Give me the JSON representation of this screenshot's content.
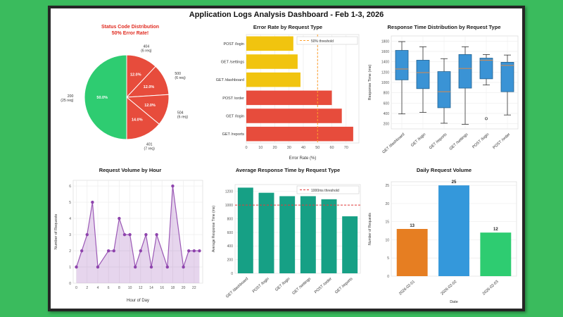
{
  "page": {
    "title": "Application Logs Analysis Dashboard - Feb 1-3, 2026",
    "background_color": "#3abb5d",
    "frame_color": "#262626"
  },
  "chart_data": [
    {
      "type": "pie",
      "title_line1": "Status Code Distribution",
      "title_line2": "50% Error Rate!",
      "title_color": "#e02b20",
      "slices": [
        {
          "label": "404",
          "sub": "(6 req)",
          "pct": 12.0,
          "pct_label": "12.0%",
          "color": "#e74c3c"
        },
        {
          "label": "500",
          "sub": "(6 req)",
          "pct": 12.0,
          "pct_label": "12.0%",
          "color": "#e74c3c"
        },
        {
          "label": "504",
          "sub": "(6 req)",
          "pct": 12.0,
          "pct_label": "12.0%",
          "color": "#e74c3c"
        },
        {
          "label": "401",
          "sub": "(7 req)",
          "pct": 14.0,
          "pct_label": "14.0%",
          "color": "#e74c3c"
        },
        {
          "label": "200",
          "sub": "(25 req)",
          "pct": 50.0,
          "pct_label": "50.0%",
          "color": "#2ecc71"
        }
      ]
    },
    {
      "type": "hbar",
      "title": "Error Rate by Request Type",
      "categories": [
        "POST /login",
        "GET /settings",
        "GET /dashboard",
        "POST /order",
        "GET /login",
        "GET /reports"
      ],
      "values": [
        33,
        36,
        38,
        60,
        67,
        75
      ],
      "colors": [
        "#f1c40f",
        "#f1c40f",
        "#f1c40f",
        "#e74c3c",
        "#e74c3c",
        "#e74c3c"
      ],
      "xlabel": "Error Rate (%)",
      "xticks": [
        0,
        10,
        20,
        30,
        40,
        50,
        60,
        70
      ],
      "xmax": 79,
      "threshold": {
        "value": 50,
        "label": "50% threshold",
        "color": "#ff9f2e"
      }
    },
    {
      "type": "box",
      "title": "Response Time Distribution by Request Type",
      "categories": [
        "GET /dashboard",
        "GET /login",
        "GET /reports",
        "GET /settings",
        "POST /login",
        "POST /order"
      ],
      "stats": [
        {
          "lo": 390,
          "q1": 1050,
          "med": 1260,
          "q3": 1620,
          "hi": 1790,
          "outliers": []
        },
        {
          "lo": 420,
          "q1": 880,
          "med": 1190,
          "q3": 1430,
          "hi": 1690,
          "outliers": []
        },
        {
          "lo": 210,
          "q1": 510,
          "med": 820,
          "q3": 1210,
          "hi": 1460,
          "outliers": []
        },
        {
          "lo": 190,
          "q1": 890,
          "med": 1270,
          "q3": 1540,
          "hi": 1690,
          "outliers": []
        },
        {
          "lo": 950,
          "q1": 1070,
          "med": 1430,
          "q3": 1470,
          "hi": 1540,
          "outliers": [
            300
          ]
        },
        {
          "lo": 370,
          "q1": 820,
          "med": 1330,
          "q3": 1390,
          "hi": 1530,
          "outliers": []
        }
      ],
      "ylabel": "Response Time (ms)",
      "yticks": [
        200,
        400,
        600,
        800,
        1000,
        1200,
        1400,
        1600,
        1800
      ],
      "ymin": 100,
      "ymax": 1900,
      "box_color": "#3a93d5",
      "median_color": "#c98a5a"
    },
    {
      "type": "line",
      "title": "Request Volume by Hour",
      "x": [
        0,
        1,
        2,
        3,
        4,
        6,
        7,
        8,
        9,
        10,
        11,
        12,
        13,
        14,
        15,
        17,
        18,
        20,
        21,
        22,
        23
      ],
      "y": [
        1,
        2,
        3,
        5,
        1,
        2,
        2,
        4,
        3,
        3,
        1,
        2,
        3,
        1,
        3,
        1,
        6,
        1,
        2,
        2,
        2
      ],
      "xlabel": "Hour of Day",
      "ylabel": "Number of Requests",
      "xticks": [
        0,
        2,
        4,
        6,
        8,
        10,
        12,
        14,
        16,
        18,
        20,
        22
      ],
      "yticks": [
        0,
        1,
        2,
        3,
        4,
        5,
        6
      ],
      "xmin": -0.6,
      "xmax": 23.6,
      "ymax": 6.35,
      "color": "#9b59b6",
      "fill": "rgba(155,89,182,0.25)"
    },
    {
      "type": "vbar",
      "title": "Average Response Time by Request Type",
      "categories": [
        "GET /dashboard",
        "POST /login",
        "GET /login",
        "GET /settings",
        "POST /order",
        "GET /reports"
      ],
      "values": [
        1255,
        1180,
        1130,
        1130,
        1085,
        835
      ],
      "bar_color": "#16a085",
      "ylabel": "Average Response Time (ms)",
      "yticks": [
        0,
        200,
        400,
        600,
        800,
        1000,
        1200
      ],
      "ymax": 1300,
      "bottom": 44,
      "show_values": false,
      "threshold": {
        "value": 1000,
        "label": "1000ms threshold",
        "color": "#e23b3b"
      }
    },
    {
      "type": "vbar",
      "title": "Daily Request Volume",
      "categories": [
        "2026-02-01",
        "2026-02-02",
        "2026-02-03"
      ],
      "values": [
        13,
        25,
        12
      ],
      "colors": [
        "#e67e22",
        "#3498db",
        "#2ecc71"
      ],
      "xlabel": "Date",
      "ylabel": "Number of Requests",
      "yticks": [
        0,
        5,
        10,
        15,
        20,
        25
      ],
      "ymax": 26,
      "bottom": 40,
      "show_values": true
    }
  ]
}
